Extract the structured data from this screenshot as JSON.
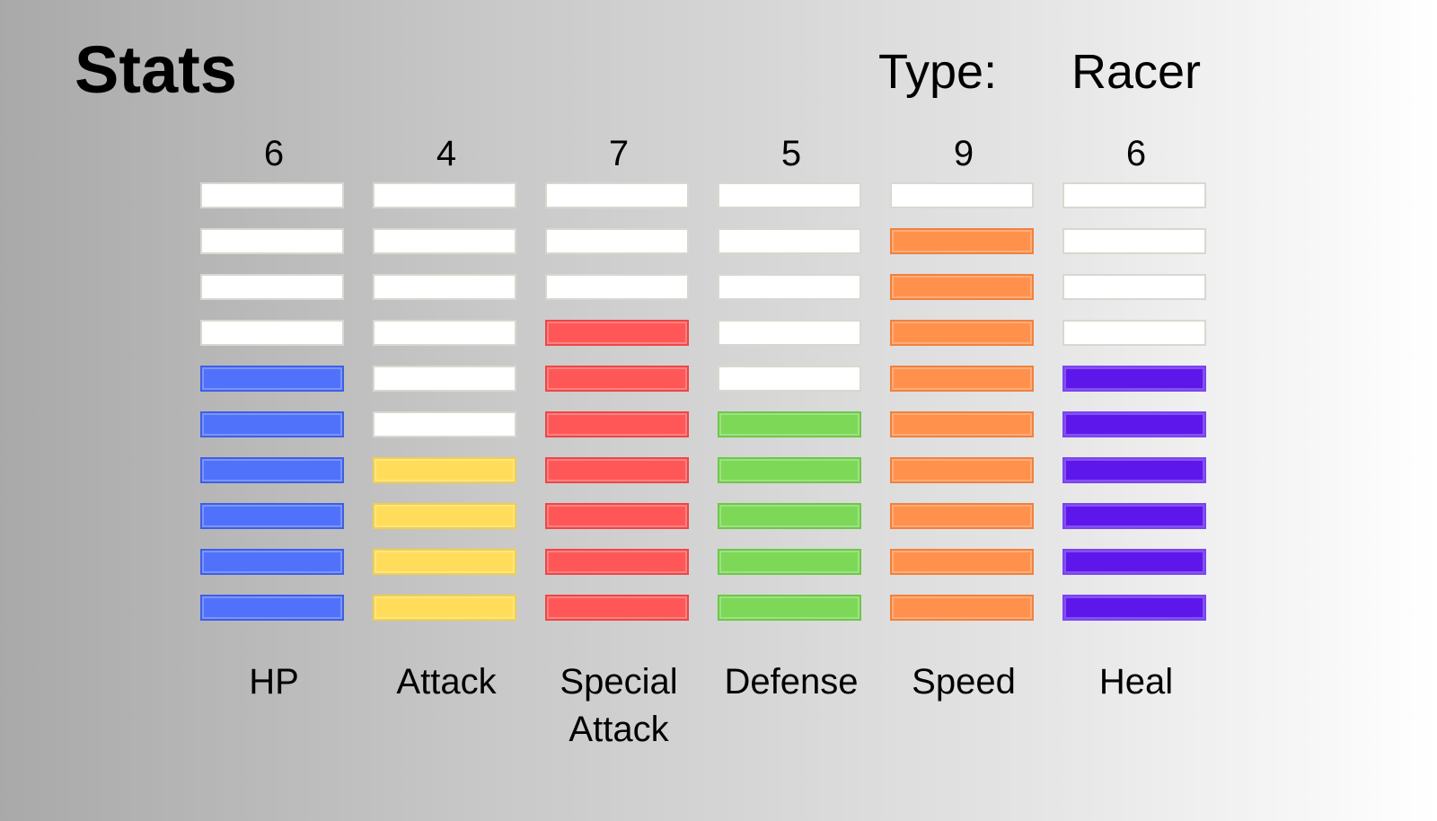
{
  "title": "Stats",
  "type_label": "Type:",
  "type_value": "Racer",
  "max_level": 10,
  "stats": [
    {
      "name": "HP",
      "value": 6,
      "color": "#5072fa",
      "border": "#3f5ee8"
    },
    {
      "name": "Attack",
      "value": 4,
      "color": "#ffdd5a",
      "border": "#f2cf48"
    },
    {
      "name": "Special\nAttack",
      "value": 7,
      "color": "#ff5757",
      "border": "#ee4646"
    },
    {
      "name": "Defense",
      "value": 5,
      "color": "#7dd858",
      "border": "#6cc848"
    },
    {
      "name": "Speed",
      "value": 9,
      "color": "#ff914d",
      "border": "#f0813d"
    },
    {
      "name": "Heal",
      "value": 6,
      "color": "#5e17eb",
      "border": "#7a45f0"
    }
  ]
}
